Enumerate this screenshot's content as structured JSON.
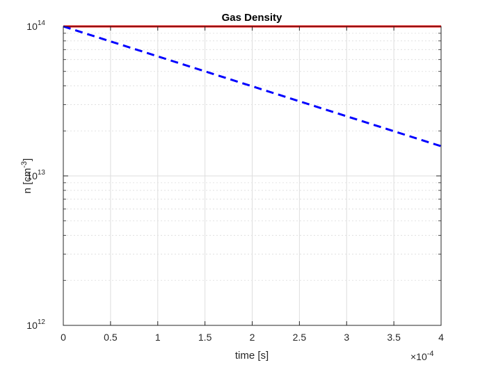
{
  "chart_data": {
    "type": "line",
    "title": "Gas Density",
    "xlabel": "time [s]",
    "ylabel_base": "n [cm",
    "ylabel_exp": "-3",
    "ylabel_close": "]",
    "x_multiplier_base": "×10",
    "x_multiplier_exp": "-4",
    "xlim": [
      0,
      0.0004
    ],
    "ylim": [
      1000000000000.0,
      100000000000000.0
    ],
    "yscale": "log",
    "grid": true,
    "minor_grid": true,
    "x_ticks": [
      0,
      5e-05,
      0.0001,
      0.00015,
      0.0002,
      0.00025,
      0.0003,
      0.00035,
      0.0004
    ],
    "x_tick_labels": [
      "0",
      "0.5",
      "1",
      "1.5",
      "2",
      "2.5",
      "3",
      "3.5",
      "4"
    ],
    "y_ticks": [
      {
        "value": 1000000000000.0,
        "base": "10",
        "exp": "12"
      },
      {
        "value": 10000000000000.0,
        "base": "10",
        "exp": "13"
      },
      {
        "value": 100000000000000.0,
        "base": "10",
        "exp": "14"
      }
    ],
    "series": [
      {
        "color": "#ff0000",
        "style": "solid",
        "x": [
          0,
          0.0004
        ],
        "y": [
          100000000000000.0,
          100000000000000.0
        ]
      },
      {
        "color": "#0000ff",
        "style": "dashed",
        "x": [
          0,
          0.0004
        ],
        "y": [
          100000000000000.0,
          15800000000000.0
        ]
      }
    ]
  }
}
